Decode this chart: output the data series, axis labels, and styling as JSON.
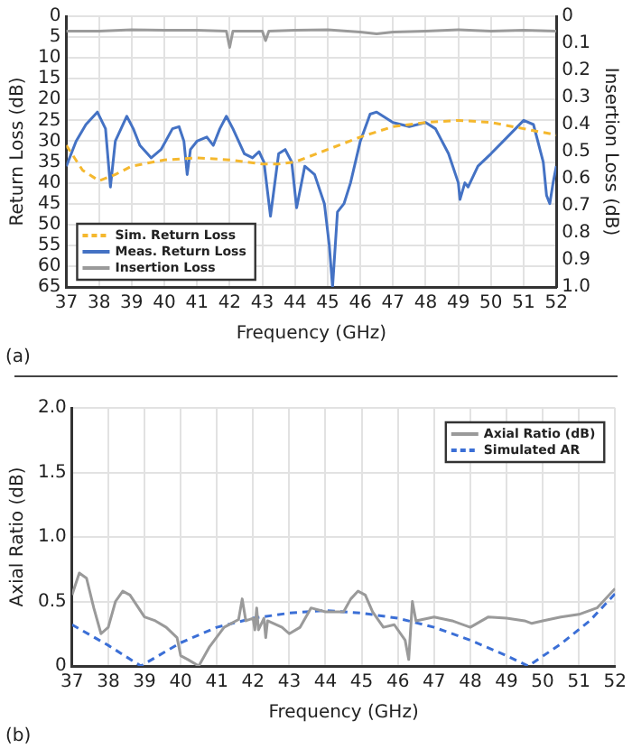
{
  "chart_data": [
    {
      "type": "line",
      "xlabel": "Frequency (GHz)",
      "ylabel": "Return Loss (dB)",
      "y2label": "Insertion Loss (dB)",
      "xlim": [
        37,
        52
      ],
      "xticks": [
        37,
        38,
        39,
        40,
        41,
        42,
        43,
        44,
        45,
        46,
        47,
        48,
        49,
        50,
        51,
        52
      ],
      "ylim": [
        65,
        0
      ],
      "yticks": [
        0,
        5,
        10,
        15,
        20,
        25,
        30,
        35,
        40,
        45,
        50,
        55,
        60,
        65
      ],
      "y2lim": [
        1,
        0
      ],
      "y2ticks": [
        0,
        0.1,
        0.2,
        0.3,
        0.4,
        0.5,
        0.6,
        0.7,
        0.8,
        0.9,
        {
          "value": 1,
          "label": "1.0"
        }
      ],
      "grid": true,
      "legend": "bottom left",
      "marker": "none",
      "annotations": [
        "(a)"
      ],
      "series": [
        {
          "name": "Sim. Return Loss",
          "color": "#f5b82e",
          "line_style": "dashed",
          "x": [
            37,
            37.5,
            38,
            38.5,
            39,
            40,
            41,
            42,
            43,
            43.5,
            44,
            45,
            46,
            47,
            48,
            49,
            50,
            51,
            52
          ],
          "values": [
            31,
            37,
            39.5,
            38,
            36,
            34.5,
            34,
            34.5,
            35.5,
            35.5,
            35,
            32,
            29,
            26.5,
            25.5,
            25,
            25.5,
            27,
            28.5
          ]
        },
        {
          "name": "Meas. Return Loss",
          "color": "#4472c4",
          "line_style": "solid",
          "x": [
            37,
            37.3,
            37.6,
            37.95,
            38.2,
            38.35,
            38.5,
            38.85,
            39.05,
            39.25,
            39.6,
            39.9,
            40.25,
            40.45,
            40.6,
            40.7,
            40.8,
            41.0,
            41.3,
            41.5,
            41.7,
            41.9,
            42.1,
            42.45,
            42.7,
            42.9,
            43.05,
            43.25,
            43.5,
            43.7,
            43.9,
            44.05,
            44.3,
            44.6,
            44.9,
            45.05,
            45.15,
            45.3,
            45.5,
            45.7,
            46.0,
            46.3,
            46.5,
            47.0,
            47.5,
            48.0,
            48.3,
            48.7,
            49.0,
            49.05,
            49.2,
            49.3,
            49.6,
            50.0,
            50.5,
            51.0,
            51.3,
            51.6,
            51.7,
            51.8,
            51.9,
            52
          ],
          "values": [
            36,
            30,
            26,
            23,
            27,
            41,
            30,
            24,
            27,
            31,
            34,
            32,
            27,
            26.5,
            30,
            38,
            32,
            30,
            29,
            31,
            27,
            24,
            27,
            33,
            34,
            32.5,
            35,
            48,
            33,
            32,
            35,
            46,
            36,
            38,
            45,
            55,
            65,
            47,
            45,
            40,
            30,
            23.5,
            23,
            25.5,
            26.5,
            25.5,
            27,
            33,
            40,
            44,
            40,
            41,
            36,
            33,
            29,
            25,
            26,
            35,
            43,
            45,
            40,
            36
          ]
        },
        {
          "name": "Insertion Loss",
          "color": "#9a9a9a",
          "line_style": "solid",
          "axis": "y2",
          "x": [
            37,
            38,
            39,
            40,
            41,
            41.9,
            42.0,
            42.1,
            43.0,
            43.1,
            43.2,
            44,
            45,
            46,
            46.5,
            47,
            48,
            49,
            50,
            51,
            52
          ],
          "values": [
            0.055,
            0.055,
            0.05,
            0.052,
            0.052,
            0.055,
            0.115,
            0.055,
            0.055,
            0.09,
            0.055,
            0.052,
            0.05,
            0.058,
            0.065,
            0.058,
            0.055,
            0.05,
            0.055,
            0.052,
            0.055
          ]
        }
      ]
    },
    {
      "type": "line",
      "xlabel": "Frequency (GHz)",
      "ylabel": "Axial Ratio (dB)",
      "xlim": [
        37,
        52
      ],
      "xticks": [
        37,
        38,
        39,
        40,
        41,
        42,
        43,
        44,
        45,
        46,
        47,
        48,
        49,
        50,
        51,
        52
      ],
      "ylim": [
        0,
        2
      ],
      "yticks": [
        0,
        0.5,
        {
          "value": 1,
          "label": "1.0"
        },
        1.5,
        {
          "value": 2,
          "label": "2.0"
        }
      ],
      "grid": true,
      "legend": "top right",
      "marker": "none",
      "annotations": [
        "(b)"
      ],
      "series": [
        {
          "name": "Axial Ratio (dB)",
          "color": "#9a9a9a",
          "line_style": "solid",
          "x": [
            37,
            37.2,
            37.4,
            37.6,
            37.8,
            38,
            38.2,
            38.4,
            38.6,
            39,
            39.3,
            39.6,
            39.9,
            40,
            40.2,
            40.5,
            40.8,
            41.2,
            41.6,
            41.7,
            41.8,
            42,
            42.05,
            42.1,
            42.15,
            42.3,
            42.35,
            42.4,
            42.8,
            43,
            43.3,
            43.6,
            44,
            44.5,
            44.7,
            44.9,
            45.1,
            45.3,
            45.6,
            45.9,
            46.2,
            46.3,
            46.4,
            46.5,
            47,
            47.5,
            48,
            48.5,
            49,
            49.5,
            49.7,
            50,
            50.5,
            51,
            51.5,
            52
          ],
          "values": [
            0.55,
            0.72,
            0.68,
            0.45,
            0.25,
            0.3,
            0.5,
            0.58,
            0.55,
            0.38,
            0.35,
            0.3,
            0.22,
            0.08,
            0.05,
            0,
            0.15,
            0.3,
            0.36,
            0.52,
            0.35,
            0.37,
            0.28,
            0.45,
            0.28,
            0.37,
            0.22,
            0.35,
            0.3,
            0.25,
            0.3,
            0.45,
            0.42,
            0.42,
            0.52,
            0.58,
            0.55,
            0.42,
            0.3,
            0.32,
            0.2,
            0.05,
            0.5,
            0.35,
            0.38,
            0.35,
            0.3,
            0.38,
            0.37,
            0.35,
            0.33,
            0.35,
            0.38,
            0.4,
            0.45,
            0.6
          ]
        },
        {
          "name": "Simulated AR",
          "color": "#3b6fd6",
          "line_style": "dashed",
          "x": [
            37,
            38,
            38.9,
            40,
            41,
            42,
            43,
            44,
            45,
            46,
            47,
            48,
            49,
            49.6,
            50.5,
            51.3,
            52
          ],
          "values": [
            0.32,
            0.16,
            0,
            0.18,
            0.3,
            0.37,
            0.41,
            0.43,
            0.41,
            0.37,
            0.3,
            0.2,
            0.08,
            0,
            0.17,
            0.35,
            0.56
          ]
        }
      ]
    }
  ]
}
